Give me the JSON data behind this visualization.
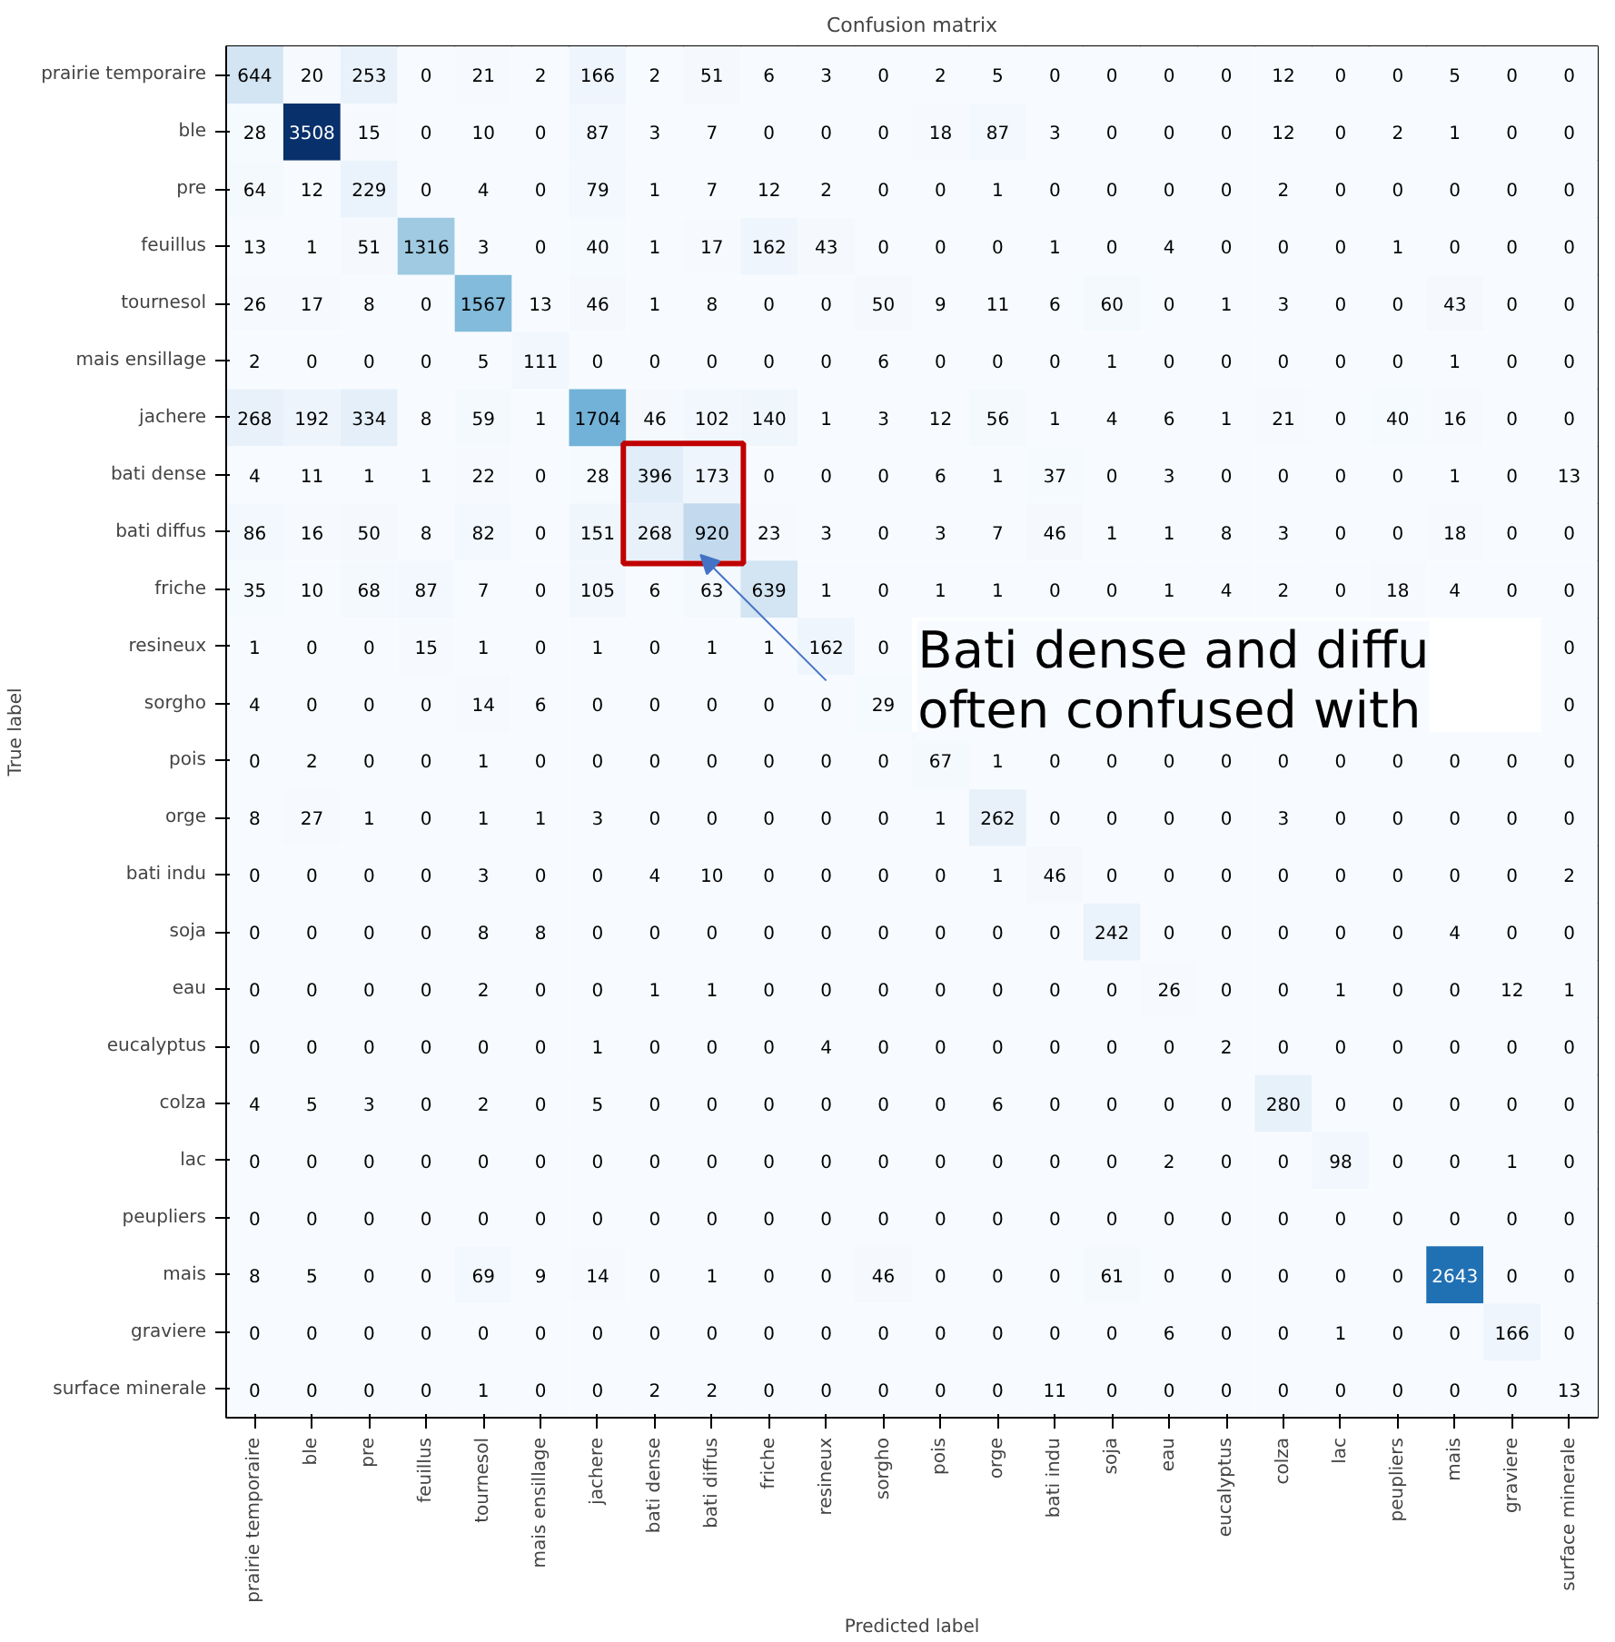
{
  "chart_data": {
    "type": "heatmap",
    "title": "Confusion matrix",
    "xlabel": "Predicted label",
    "ylabel": "True label",
    "data_labels": true,
    "categories": [
      "prairie temporaire",
      "ble",
      "pre",
      "feuillus",
      "tournesol",
      "mais ensillage",
      "jachere",
      "bati dense",
      "bati diffus",
      "friche",
      "resineux",
      "sorgho",
      "pois",
      "orge",
      "bati indu",
      "soja",
      "eau",
      "eucalyptus",
      "colza",
      "lac",
      "peupliers",
      "mais",
      "graviere",
      "surface minerale"
    ],
    "y_categories": [
      "prairie temporaire",
      "ble",
      "pre",
      "feuillus",
      "tournesol",
      "mais ensillage",
      "jachere",
      "bati dense",
      "bati diffus",
      "friche",
      "resineux",
      "sorgho",
      "pois",
      "orge",
      "bati indu",
      "soja",
      "eau",
      "eucalyptus",
      "colza",
      "lac",
      "peupliers",
      "mais",
      "graviere",
      "surface minerale"
    ],
    "cells": [
      [
        644,
        20,
        253,
        0,
        21,
        2,
        166,
        2,
        51,
        6,
        3,
        0,
        2,
        5,
        0,
        0,
        0,
        0,
        12,
        0,
        0,
        5,
        0,
        0
      ],
      [
        28,
        3508,
        15,
        0,
        10,
        0,
        87,
        3,
        7,
        0,
        0,
        0,
        18,
        87,
        3,
        0,
        0,
        0,
        12,
        0,
        2,
        1,
        0,
        0
      ],
      [
        64,
        12,
        229,
        0,
        4,
        0,
        79,
        1,
        7,
        12,
        2,
        0,
        0,
        1,
        0,
        0,
        0,
        0,
        2,
        0,
        0,
        0,
        0,
        0
      ],
      [
        13,
        1,
        51,
        1316,
        3,
        0,
        40,
        1,
        17,
        162,
        43,
        0,
        0,
        0,
        1,
        0,
        4,
        0,
        0,
        0,
        1,
        0,
        0,
        0
      ],
      [
        26,
        17,
        8,
        0,
        1567,
        13,
        46,
        1,
        8,
        0,
        0,
        50,
        9,
        11,
        6,
        60,
        0,
        1,
        3,
        0,
        0,
        43,
        0,
        0
      ],
      [
        2,
        0,
        0,
        0,
        5,
        111,
        0,
        0,
        0,
        0,
        0,
        6,
        0,
        0,
        0,
        1,
        0,
        0,
        0,
        0,
        0,
        1,
        0,
        0
      ],
      [
        268,
        192,
        334,
        8,
        59,
        1,
        1704,
        46,
        102,
        140,
        1,
        3,
        12,
        56,
        1,
        4,
        6,
        1,
        21,
        0,
        40,
        16,
        0,
        0
      ],
      [
        4,
        11,
        1,
        1,
        22,
        0,
        28,
        396,
        173,
        0,
        0,
        0,
        6,
        1,
        37,
        0,
        3,
        0,
        0,
        0,
        0,
        1,
        0,
        13
      ],
      [
        86,
        16,
        50,
        8,
        82,
        0,
        151,
        268,
        920,
        23,
        3,
        0,
        3,
        7,
        46,
        1,
        1,
        8,
        3,
        0,
        0,
        18,
        0,
        0
      ],
      [
        35,
        10,
        68,
        87,
        7,
        0,
        105,
        6,
        63,
        639,
        1,
        0,
        1,
        1,
        0,
        0,
        1,
        4,
        2,
        0,
        18,
        4,
        0,
        0
      ],
      [
        1,
        0,
        0,
        15,
        1,
        0,
        1,
        0,
        1,
        1,
        162,
        0,
        null,
        null,
        null,
        null,
        null,
        null,
        null,
        null,
        null,
        null,
        null,
        0
      ],
      [
        4,
        0,
        0,
        0,
        14,
        6,
        0,
        0,
        0,
        0,
        0,
        29,
        null,
        null,
        null,
        null,
        null,
        null,
        null,
        null,
        null,
        null,
        null,
        0
      ],
      [
        0,
        2,
        0,
        0,
        1,
        0,
        0,
        0,
        0,
        0,
        0,
        0,
        67,
        1,
        0,
        0,
        0,
        0,
        0,
        0,
        0,
        0,
        0,
        0
      ],
      [
        8,
        27,
        1,
        0,
        1,
        1,
        3,
        0,
        0,
        0,
        0,
        0,
        1,
        262,
        0,
        0,
        0,
        0,
        3,
        0,
        0,
        0,
        0,
        0
      ],
      [
        0,
        0,
        0,
        0,
        3,
        0,
        0,
        4,
        10,
        0,
        0,
        0,
        0,
        1,
        46,
        0,
        0,
        0,
        0,
        0,
        0,
        0,
        0,
        2
      ],
      [
        0,
        0,
        0,
        0,
        8,
        8,
        0,
        0,
        0,
        0,
        0,
        0,
        0,
        0,
        0,
        242,
        0,
        0,
        0,
        0,
        0,
        4,
        0,
        0
      ],
      [
        0,
        0,
        0,
        0,
        2,
        0,
        0,
        1,
        1,
        0,
        0,
        0,
        0,
        0,
        0,
        0,
        26,
        0,
        0,
        1,
        0,
        0,
        12,
        1
      ],
      [
        0,
        0,
        0,
        0,
        0,
        0,
        1,
        0,
        0,
        0,
        4,
        0,
        0,
        0,
        0,
        0,
        0,
        2,
        0,
        0,
        0,
        0,
        0,
        0
      ],
      [
        4,
        5,
        3,
        0,
        2,
        0,
        5,
        0,
        0,
        0,
        0,
        0,
        0,
        6,
        0,
        0,
        0,
        0,
        280,
        0,
        0,
        0,
        0,
        0
      ],
      [
        0,
        0,
        0,
        0,
        0,
        0,
        0,
        0,
        0,
        0,
        0,
        0,
        0,
        0,
        0,
        0,
        2,
        0,
        0,
        98,
        0,
        0,
        1,
        0
      ],
      [
        0,
        0,
        0,
        0,
        0,
        0,
        0,
        0,
        0,
        0,
        0,
        0,
        0,
        0,
        0,
        0,
        0,
        0,
        0,
        0,
        0,
        0,
        0,
        0
      ],
      [
        8,
        5,
        0,
        0,
        69,
        9,
        14,
        0,
        1,
        0,
        0,
        46,
        0,
        0,
        0,
        61,
        0,
        0,
        0,
        0,
        0,
        2643,
        0,
        0
      ],
      [
        0,
        0,
        0,
        0,
        0,
        0,
        0,
        0,
        0,
        0,
        0,
        0,
        0,
        0,
        0,
        0,
        6,
        0,
        0,
        1,
        0,
        0,
        166,
        0
      ],
      [
        0,
        0,
        0,
        0,
        1,
        0,
        0,
        2,
        2,
        0,
        0,
        0,
        0,
        0,
        11,
        0,
        0,
        0,
        0,
        0,
        0,
        0,
        0,
        13
      ]
    ],
    "annotations": [
      "Bati dense and diffu\noften confused with"
    ]
  }
}
